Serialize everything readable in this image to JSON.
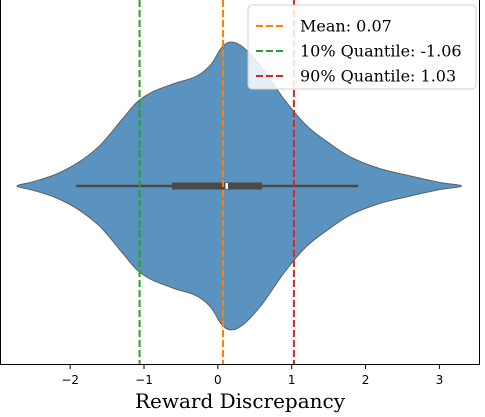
{
  "chart_data": {
    "type": "violin",
    "xlabel": "Reward Discrepancy",
    "ylabel": "",
    "xlim": [
      -2.95,
      3.55
    ],
    "xticks": [
      -2,
      -1,
      0,
      1,
      2,
      3
    ],
    "xtick_labels": [
      "−2",
      "−1",
      "0",
      "1",
      "2",
      "3"
    ],
    "yticks": [],
    "grid": false,
    "violin": {
      "color": "#5a93c0",
      "edge_color": "#5f5f5f",
      "profile": [
        {
          "x": -2.72,
          "density": 0.0
        },
        {
          "x": -2.5,
          "density": 0.03
        },
        {
          "x": -2.2,
          "density": 0.08
        },
        {
          "x": -1.9,
          "density": 0.16
        },
        {
          "x": -1.6,
          "density": 0.28
        },
        {
          "x": -1.3,
          "density": 0.46
        },
        {
          "x": -1.1,
          "density": 0.58
        },
        {
          "x": -0.9,
          "density": 0.65
        },
        {
          "x": -0.6,
          "density": 0.71
        },
        {
          "x": -0.3,
          "density": 0.76
        },
        {
          "x": -0.1,
          "density": 0.84
        },
        {
          "x": 0.05,
          "density": 0.96
        },
        {
          "x": 0.18,
          "density": 1.0
        },
        {
          "x": 0.35,
          "density": 0.96
        },
        {
          "x": 0.6,
          "density": 0.82
        },
        {
          "x": 0.9,
          "density": 0.6
        },
        {
          "x": 1.2,
          "density": 0.42
        },
        {
          "x": 1.5,
          "density": 0.3
        },
        {
          "x": 1.8,
          "density": 0.2
        },
        {
          "x": 2.2,
          "density": 0.12
        },
        {
          "x": 2.6,
          "density": 0.07
        },
        {
          "x": 3.0,
          "density": 0.025
        },
        {
          "x": 3.3,
          "density": 0.0
        }
      ]
    },
    "box": {
      "whisker_low": -1.92,
      "q1": -0.62,
      "median": 0.12,
      "q3": 0.6,
      "whisker_high": 1.9
    },
    "reference_lines": [
      {
        "name": "Mean: 0.07",
        "x": 0.07,
        "color": "#ff7f0e",
        "style": "dashed"
      },
      {
        "name": "10% Quantile: -1.06",
        "x": -1.06,
        "color": "#2ca02c",
        "style": "dashed"
      },
      {
        "name": "90% Quantile: 1.03",
        "x": 1.03,
        "color": "#d62728",
        "style": "dashed"
      }
    ],
    "legend": {
      "position": "top-right"
    }
  }
}
